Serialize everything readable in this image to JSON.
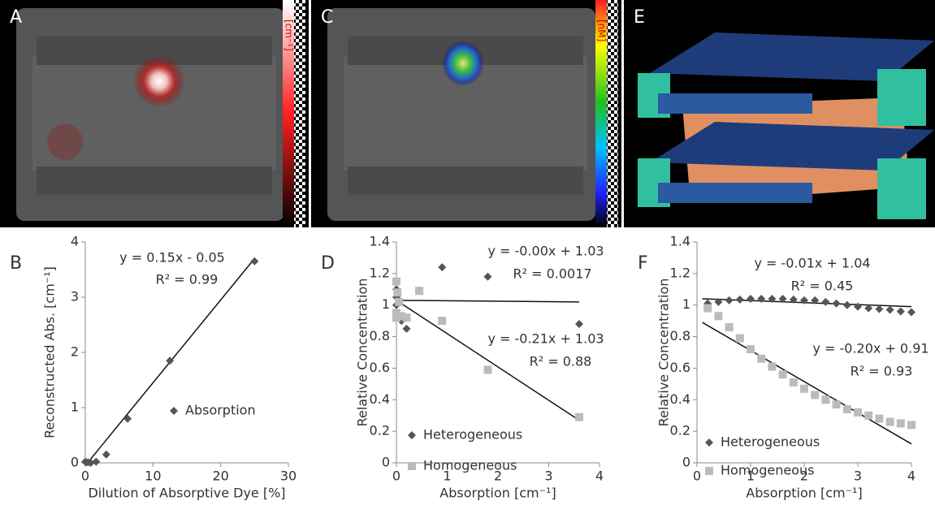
{
  "panels": [
    {
      "label": "A",
      "colorbar_label": "[cm⁻¹]"
    },
    {
      "label": "C",
      "colorbar_label": "[nM]"
    },
    {
      "label": "E"
    }
  ],
  "chart_data": [
    {
      "type": "scatter",
      "panel_label": "B",
      "x_label": "Dilution of Absorptive Dye [%]",
      "y_label": "Reconstructed Abs. [cm⁻¹]",
      "xlim": [
        0,
        30
      ],
      "ylim": [
        0,
        4
      ],
      "xticks": [
        0,
        10,
        20,
        30
      ],
      "yticks": [
        0,
        1,
        2,
        3,
        4
      ],
      "series": [
        {
          "name": "Absorption",
          "color": "#555555",
          "marker": "diamond",
          "x": [
            0,
            0.1,
            0.4,
            0.8,
            1.6,
            3.1,
            6.25,
            12.5,
            25
          ],
          "values": [
            0.02,
            0.01,
            0.01,
            0.0,
            0.02,
            0.15,
            0.8,
            1.85,
            3.65
          ]
        }
      ],
      "trendlines": [
        {
          "x": [
            0,
            25
          ],
          "y": [
            -0.05,
            3.7
          ]
        }
      ],
      "annotations": [
        "y = 0.15x - 0.05",
        "R² = 0.99"
      ]
    },
    {
      "type": "scatter",
      "panel_label": "D",
      "x_label": "Absorption [cm⁻¹]",
      "y_label": "Relative Concentration",
      "xlim": [
        0,
        4
      ],
      "ylim": [
        0,
        1.4
      ],
      "xticks": [
        0,
        1,
        2,
        3,
        4
      ],
      "yticks": [
        0,
        0.2,
        0.4,
        0.6,
        0.8,
        1,
        1.2,
        1.4
      ],
      "series": [
        {
          "name": "Heterogeneous",
          "color": "#555555",
          "marker": "diamond",
          "x": [
            0,
            0,
            0,
            0.05,
            0.1,
            0.2,
            0.9,
            1.8,
            3.6
          ],
          "values": [
            1.1,
            1.0,
            1.05,
            1.03,
            0.9,
            0.85,
            1.24,
            1.18,
            0.88
          ]
        },
        {
          "name": "Homogeneous",
          "color": "#bbbbbb",
          "marker": "square",
          "x": [
            0,
            0,
            0,
            0.02,
            0.05,
            0.1,
            0.2,
            0.45,
            0.9,
            1.8,
            3.6
          ],
          "values": [
            1.15,
            0.95,
            0.92,
            1.08,
            1.02,
            0.93,
            0.92,
            1.09,
            0.9,
            0.59,
            0.29
          ]
        }
      ],
      "trendlines": [
        {
          "x": [
            0,
            3.6
          ],
          "y": [
            1.03,
            1.02
          ]
        },
        {
          "x": [
            0,
            3.6
          ],
          "y": [
            1.03,
            0.27
          ]
        }
      ],
      "annotations": [
        "y = -0.00x + 1.03",
        "R² = 0.0017",
        "y = -0.21x + 1.03",
        "R² = 0.88"
      ]
    },
    {
      "type": "scatter",
      "panel_label": "F",
      "x_label": "Absorption [cm⁻¹]",
      "y_label": "Relative Concentration",
      "xlim": [
        0,
        4
      ],
      "ylim": [
        0,
        1.4
      ],
      "xticks": [
        0,
        1,
        2,
        3,
        4
      ],
      "yticks": [
        0,
        0.2,
        0.4,
        0.6,
        0.8,
        1,
        1.2,
        1.4
      ],
      "series": [
        {
          "name": "Heterogeneous",
          "color": "#555555",
          "marker": "diamond",
          "x": [
            0.2,
            0.4,
            0.6,
            0.8,
            1.0,
            1.2,
            1.4,
            1.6,
            1.8,
            2.0,
            2.2,
            2.4,
            2.6,
            2.8,
            3.0,
            3.2,
            3.4,
            3.6,
            3.8,
            4.0
          ],
          "values": [
            1.01,
            1.02,
            1.03,
            1.035,
            1.04,
            1.04,
            1.04,
            1.04,
            1.035,
            1.03,
            1.03,
            1.02,
            1.01,
            1.0,
            0.99,
            0.98,
            0.975,
            0.97,
            0.96,
            0.955
          ]
        },
        {
          "name": "Homogeneous",
          "color": "#bbbbbb",
          "marker": "square",
          "x": [
            0.2,
            0.4,
            0.6,
            0.8,
            1.0,
            1.2,
            1.4,
            1.6,
            1.8,
            2.0,
            2.2,
            2.4,
            2.6,
            2.8,
            3.0,
            3.2,
            3.4,
            3.6,
            3.8,
            4.0
          ],
          "values": [
            0.98,
            0.93,
            0.86,
            0.79,
            0.72,
            0.66,
            0.61,
            0.56,
            0.51,
            0.47,
            0.43,
            0.4,
            0.37,
            0.34,
            0.32,
            0.3,
            0.28,
            0.26,
            0.25,
            0.24
          ]
        }
      ],
      "trendlines": [
        {
          "x": [
            0.1,
            4
          ],
          "y": [
            1.04,
            0.99
          ]
        },
        {
          "x": [
            0.1,
            4
          ],
          "y": [
            0.89,
            0.12
          ]
        }
      ],
      "annotations": [
        "y = -0.01x + 1.04",
        "R² = 0.45",
        "y = -0.20x + 0.91",
        "R² = 0.93"
      ]
    }
  ]
}
